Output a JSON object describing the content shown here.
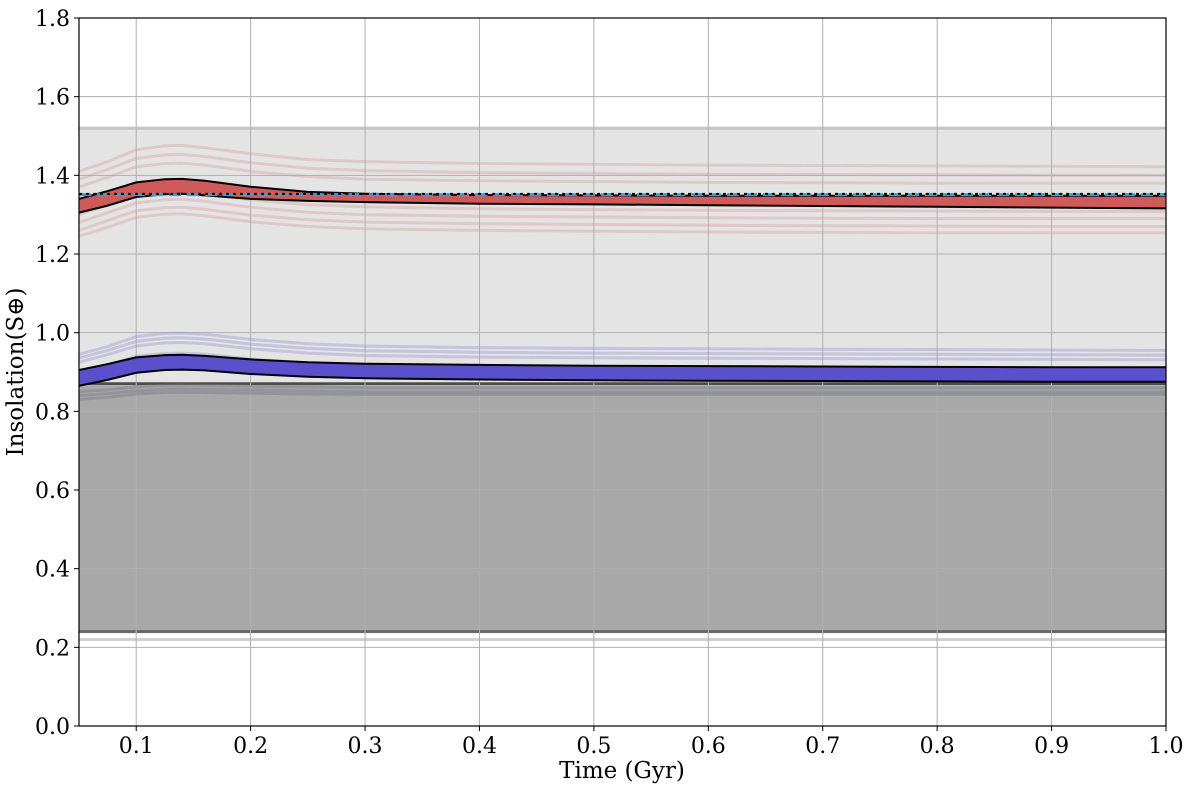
{
  "chart_data": {
    "type": "line",
    "xlabel": "Time (Gyr)",
    "ylabel": "Insolation(S⊕)",
    "xlim": [
      0.05,
      1.0
    ],
    "ylim": [
      0.0,
      1.8
    ],
    "x_ticks": [
      0.1,
      0.2,
      0.3,
      0.4,
      0.5,
      0.6,
      0.7,
      0.8,
      0.9,
      1.0
    ],
    "x_tick_labels": [
      "0.1",
      "0.2",
      "0.3",
      "0.4",
      "0.5",
      "0.6",
      "0.7",
      "0.8",
      "0.9",
      "1.0"
    ],
    "y_ticks": [
      0.0,
      0.2,
      0.4,
      0.6,
      0.8,
      1.0,
      1.2,
      1.4,
      1.6,
      1.8
    ],
    "y_tick_labels": [
      "0.0",
      "0.2",
      "0.4",
      "0.6",
      "0.8",
      "1.0",
      "1.2",
      "1.4",
      "1.6",
      "1.8"
    ],
    "grid": true,
    "x": [
      0.05,
      0.075,
      0.1,
      0.125,
      0.14,
      0.16,
      0.2,
      0.25,
      0.3,
      0.4,
      0.5,
      0.6,
      0.7,
      0.8,
      0.9,
      1.0
    ],
    "regions": [
      {
        "name": "light-zone",
        "y_low": 0.865,
        "y_high": 1.52,
        "color": "#e4e4e4"
      },
      {
        "name": "dark-zone",
        "y_low": 0.24,
        "y_high": 0.865,
        "color": "#a8a8a8"
      }
    ],
    "boundary_lines": [
      {
        "y": 1.52,
        "color": "#bdbdbd"
      },
      {
        "y": 0.24,
        "color": "#555555"
      },
      {
        "y": 0.22,
        "color": "#c8c8c8"
      },
      {
        "y": 0.87,
        "color": "#333333"
      }
    ],
    "dark_band_traces": [
      {
        "y": [
          0.85,
          0.855,
          0.862,
          0.866,
          0.867,
          0.866,
          0.864,
          0.862,
          0.86,
          0.86,
          0.86,
          0.86,
          0.86,
          0.86,
          0.86,
          0.86
        ]
      },
      {
        "y": [
          0.84,
          0.845,
          0.852,
          0.856,
          0.857,
          0.856,
          0.854,
          0.852,
          0.85,
          0.85,
          0.85,
          0.85,
          0.85,
          0.85,
          0.85,
          0.85
        ]
      },
      {
        "y": [
          0.83,
          0.836,
          0.844,
          0.848,
          0.849,
          0.848,
          0.846,
          0.844,
          0.843,
          0.843,
          0.843,
          0.843,
          0.843,
          0.843,
          0.843,
          0.843
        ]
      }
    ],
    "red_traces": [
      {
        "y": [
          1.41,
          1.435,
          1.465,
          1.475,
          1.476,
          1.47,
          1.455,
          1.44,
          1.435,
          1.43,
          1.428,
          1.426,
          1.425,
          1.424,
          1.423,
          1.422
        ]
      },
      {
        "y": [
          1.39,
          1.415,
          1.443,
          1.452,
          1.453,
          1.448,
          1.432,
          1.418,
          1.412,
          1.407,
          1.405,
          1.403,
          1.402,
          1.401,
          1.4,
          1.4
        ]
      },
      {
        "y": [
          1.37,
          1.395,
          1.422,
          1.43,
          1.431,
          1.426,
          1.41,
          1.397,
          1.39,
          1.386,
          1.384,
          1.382,
          1.381,
          1.38,
          1.38,
          1.38
        ]
      },
      {
        "y": [
          1.32,
          1.345,
          1.372,
          1.38,
          1.381,
          1.376,
          1.36,
          1.347,
          1.34,
          1.336,
          1.334,
          1.332,
          1.331,
          1.33,
          1.33,
          1.33
        ]
      },
      {
        "y": [
          1.3,
          1.325,
          1.35,
          1.358,
          1.359,
          1.354,
          1.338,
          1.325,
          1.32,
          1.315,
          1.313,
          1.311,
          1.31,
          1.309,
          1.308,
          1.308
        ]
      },
      {
        "y": [
          1.28,
          1.305,
          1.33,
          1.338,
          1.339,
          1.334,
          1.319,
          1.306,
          1.3,
          1.296,
          1.294,
          1.292,
          1.291,
          1.29,
          1.29,
          1.29
        ]
      },
      {
        "y": [
          1.26,
          1.285,
          1.31,
          1.318,
          1.319,
          1.314,
          1.299,
          1.287,
          1.281,
          1.277,
          1.275,
          1.273,
          1.272,
          1.271,
          1.27,
          1.27
        ]
      },
      {
        "y": [
          1.245,
          1.268,
          1.293,
          1.301,
          1.302,
          1.297,
          1.282,
          1.27,
          1.264,
          1.26,
          1.258,
          1.256,
          1.255,
          1.254,
          1.254,
          1.254
        ]
      }
    ],
    "blue_traces": [
      {
        "y": [
          0.945,
          0.965,
          0.99,
          0.998,
          0.999,
          0.996,
          0.983,
          0.972,
          0.966,
          0.962,
          0.96,
          0.959,
          0.958,
          0.957,
          0.956,
          0.955
        ]
      },
      {
        "y": [
          0.935,
          0.955,
          0.978,
          0.986,
          0.987,
          0.984,
          0.971,
          0.96,
          0.954,
          0.95,
          0.948,
          0.947,
          0.946,
          0.945,
          0.944,
          0.943
        ]
      },
      {
        "y": [
          0.925,
          0.944,
          0.966,
          0.974,
          0.975,
          0.972,
          0.959,
          0.948,
          0.942,
          0.938,
          0.936,
          0.935,
          0.934,
          0.933,
          0.932,
          0.931
        ]
      },
      {
        "y": [
          0.9,
          0.918,
          0.94,
          0.947,
          0.948,
          0.945,
          0.933,
          0.922,
          0.916,
          0.912,
          0.91,
          0.909,
          0.908,
          0.907,
          0.906,
          0.905
        ]
      },
      {
        "y": [
          0.89,
          0.907,
          0.928,
          0.935,
          0.936,
          0.933,
          0.921,
          0.911,
          0.905,
          0.901,
          0.899,
          0.898,
          0.897,
          0.896,
          0.895,
          0.895
        ]
      }
    ],
    "red_band": {
      "color": "#d05a5a",
      "upper": [
        1.34,
        1.36,
        1.382,
        1.39,
        1.391,
        1.386,
        1.371,
        1.358,
        1.353,
        1.35,
        1.349,
        1.348,
        1.348,
        1.348,
        1.348,
        1.348
      ],
      "lower": [
        1.305,
        1.323,
        1.345,
        1.352,
        1.353,
        1.349,
        1.34,
        1.335,
        1.332,
        1.328,
        1.326,
        1.324,
        1.322,
        1.32,
        1.318,
        1.316
      ]
    },
    "blue_band": {
      "color": "#5a50cc",
      "upper": [
        0.905,
        0.92,
        0.937,
        0.943,
        0.944,
        0.941,
        0.932,
        0.925,
        0.921,
        0.918,
        0.916,
        0.915,
        0.914,
        0.913,
        0.912,
        0.912
      ],
      "lower": [
        0.865,
        0.88,
        0.898,
        0.905,
        0.906,
        0.904,
        0.895,
        0.888,
        0.884,
        0.881,
        0.879,
        0.878,
        0.877,
        0.876,
        0.875,
        0.875
      ]
    },
    "reference_lines": [
      {
        "y": 1.351,
        "color": "#1fa8e6",
        "style": "dashed"
      },
      {
        "y": 1.353,
        "color": "#000000",
        "style": "dotted"
      }
    ]
  }
}
